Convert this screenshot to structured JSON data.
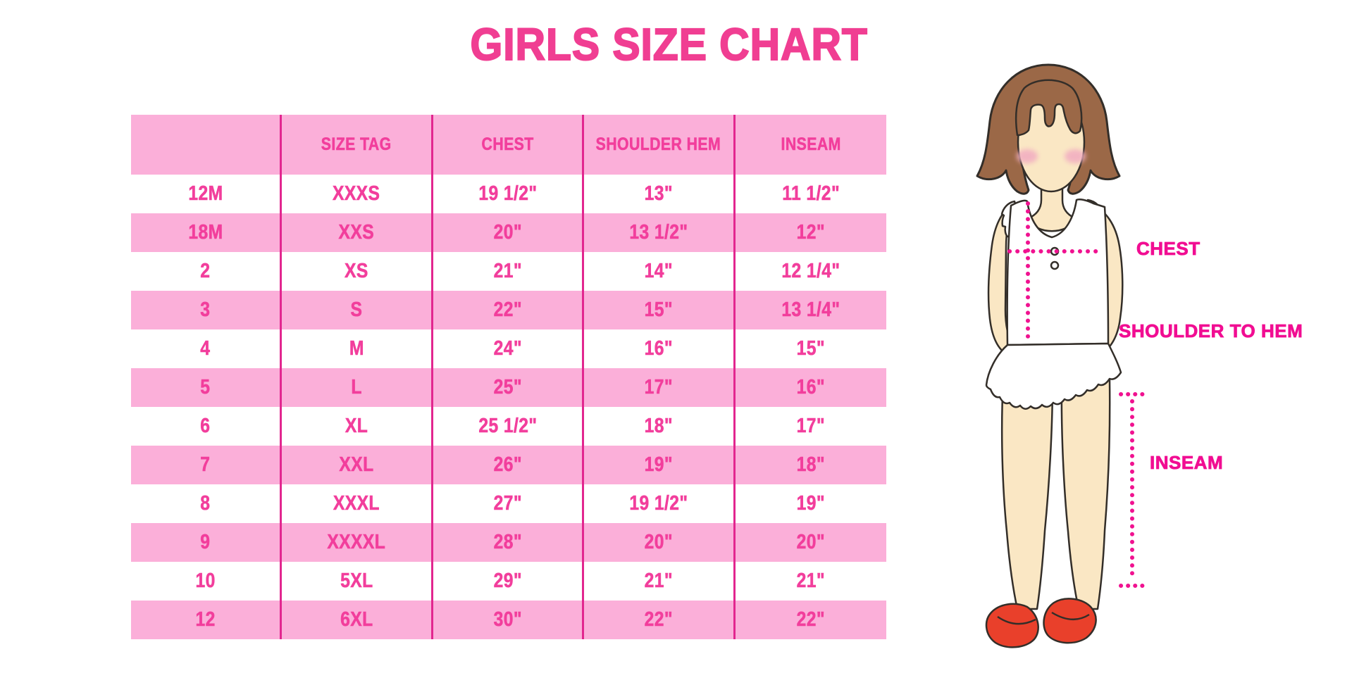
{
  "title": "GIRLS SIZE CHART",
  "colors": {
    "accent_text_pink": "#F23E9C",
    "title_pink": "#F03E92",
    "row_band_pink": "#FBAFD9",
    "grid_line_magenta": "#E2268F",
    "measure_magenta": "#F10D92",
    "hair_brown": "#9B6847",
    "skin": "#FAE7C4",
    "cheek_pink": "#F2AFC1",
    "shoe_red": "#E9402B"
  },
  "chart_data": {
    "type": "table",
    "title": "GIRLS SIZE CHART",
    "columns": [
      "",
      "SIZE TAG",
      "CHEST",
      "SHOULDER HEM",
      "INSEAM"
    ],
    "rows": [
      [
        "12M",
        "XXXS",
        "19 1/2\"",
        "13\"",
        "11 1/2\""
      ],
      [
        "18M",
        "XXS",
        "20\"",
        "13 1/2\"",
        "12\""
      ],
      [
        "2",
        "XS",
        "21\"",
        "14\"",
        "12 1/4\""
      ],
      [
        "3",
        "S",
        "22\"",
        "15\"",
        "13 1/4\""
      ],
      [
        "4",
        "M",
        "24\"",
        "16\"",
        "15\""
      ],
      [
        "5",
        "L",
        "25\"",
        "17\"",
        "16\""
      ],
      [
        "6",
        "XL",
        "25 1/2\"",
        "18\"",
        "17\""
      ],
      [
        "7",
        "XXL",
        "26\"",
        "19\"",
        "18\""
      ],
      [
        "8",
        "XXXL",
        "27\"",
        "19 1/2\"",
        "19\""
      ],
      [
        "9",
        "XXXXL",
        "28\"",
        "20\"",
        "20\""
      ],
      [
        "10",
        "5XL",
        "29\"",
        "21\"",
        "21\""
      ],
      [
        "12",
        "6XL",
        "30\"",
        "22\"",
        "22\""
      ]
    ]
  },
  "figure": {
    "chest_label": "CHEST",
    "shoulder_to_hem_label": "SHOULDER TO HEM",
    "inseam_label": "INSEAM"
  }
}
